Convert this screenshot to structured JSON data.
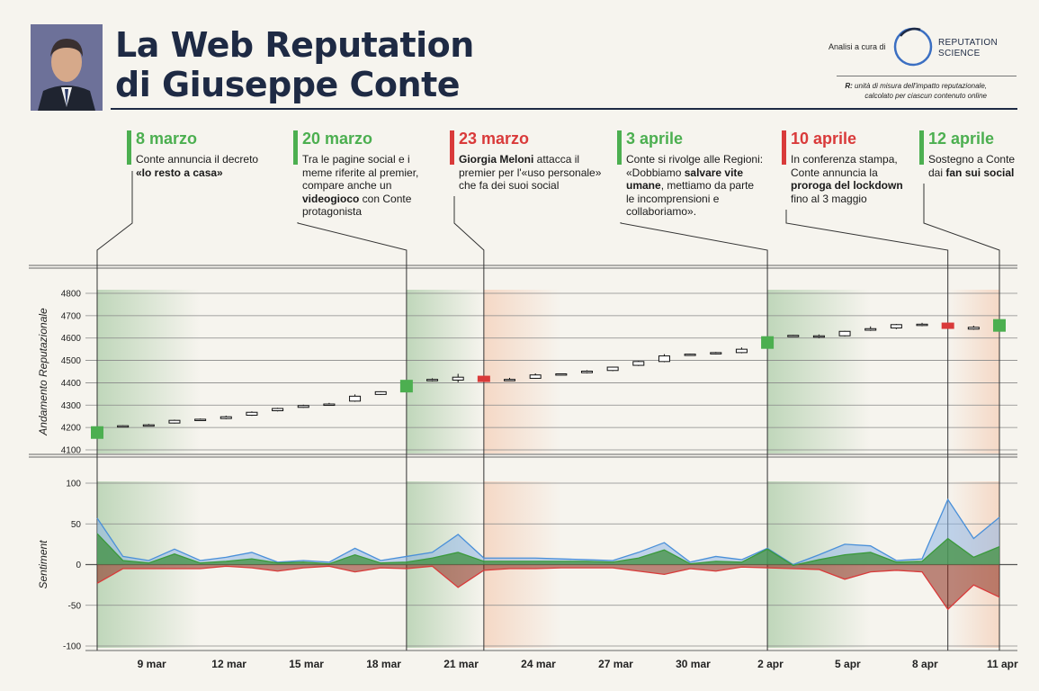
{
  "header": {
    "title_line1": "La Web Reputation",
    "title_line2": "di Giuseppe Conte",
    "credit": "Analisi a cura di",
    "brand_line1": "REPUTATION",
    "brand_line2": "SCIENCE",
    "unit_note_prefix": "R:",
    "unit_note_line1": "unità di misura dell'impatto reputazionale,",
    "unit_note_line2": "calcolato per ciascun contenuto online"
  },
  "colors": {
    "positive": "#4caf50",
    "negative": "#d93a3a",
    "navy": "#1e2a44",
    "sentiment_total": "#4a90d9"
  },
  "events": [
    {
      "date": "8 marzo",
      "tone": "positive",
      "desc": [
        "Conte annuncia il decreto",
        "<b>«Io resto a casa»</b>"
      ]
    },
    {
      "date": "20 marzo",
      "tone": "positive",
      "desc": [
        "Tra le pagine social e i",
        "meme riferite al premier,",
        "compare anche un",
        "<b>videogioco</b> con Conte",
        "protagonista"
      ]
    },
    {
      "date": "23 marzo",
      "tone": "negative",
      "desc": [
        "<b>Giorgia Meloni</b> attacca il",
        "premier per l'«uso personale»",
        "che fa dei suoi social"
      ]
    },
    {
      "date": "3 aprile",
      "tone": "positive",
      "desc": [
        "Conte si rivolge alle Regioni:",
        "«Dobbiamo <b>salvare vite</b>",
        "<b>umane</b>, mettiamo da parte",
        "le incomprensioni e",
        "collaboriamo»."
      ]
    },
    {
      "date": "10 aprile",
      "tone": "negative",
      "desc": [
        "In conferenza stampa,",
        "Conte annuncia la",
        "<b>proroga del lockdown</b>",
        "fino al 3 maggio"
      ]
    },
    {
      "date": "12 aprile",
      "tone": "positive",
      "desc": [
        "Sostegno a Conte",
        "dai <b>fan sui social</b>"
      ]
    }
  ],
  "chart_data": [
    {
      "type": "candlestick",
      "ylabel": "Andamento Reputazionale",
      "ylim": [
        4100,
        4800
      ],
      "yticks": [
        4100,
        4200,
        4300,
        4400,
        4500,
        4600,
        4700,
        4800
      ],
      "x": [
        "8 mar",
        "9 mar",
        "10 mar",
        "11 mar",
        "12 mar",
        "13 mar",
        "14 mar",
        "15 mar",
        "16 mar",
        "17 mar",
        "18 mar",
        "19 mar",
        "20 mar",
        "21 mar",
        "22 mar",
        "23 mar",
        "24 mar",
        "25 mar",
        "26 mar",
        "27 mar",
        "28 mar",
        "29 mar",
        "30 mar",
        "31 mar",
        "1 apr",
        "2 apr",
        "3 apr",
        "4 apr",
        "5 apr",
        "6 apr",
        "7 apr",
        "8 apr",
        "9 apr",
        "10 apr",
        "11 apr",
        "12 apr"
      ],
      "open": [
        4170,
        4203,
        4210,
        4220,
        4235,
        4240,
        4255,
        4275,
        4290,
        4300,
        4318,
        4348,
        4370,
        4410,
        4412,
        4415,
        4412,
        4420,
        4435,
        4445,
        4455,
        4478,
        4495,
        4525,
        4530,
        4535,
        4570,
        4610,
        4605,
        4610,
        4635,
        4645,
        4656,
        4650,
        4640,
        4648
      ],
      "close": [
        4185,
        4208,
        4212,
        4232,
        4237,
        4248,
        4268,
        4285,
        4298,
        4305,
        4340,
        4360,
        4400,
        4415,
        4425,
        4420,
        4415,
        4435,
        4440,
        4452,
        4470,
        4495,
        4520,
        4528,
        4535,
        4550,
        4590,
        4612,
        4610,
        4630,
        4642,
        4660,
        4662,
        4660,
        4648,
        4665
      ],
      "high": [
        4185,
        4210,
        4216,
        4235,
        4240,
        4253,
        4272,
        4288,
        4302,
        4310,
        4348,
        4362,
        4400,
        4420,
        4440,
        4420,
        4422,
        4442,
        4442,
        4456,
        4472,
        4498,
        4528,
        4530,
        4538,
        4558,
        4590,
        4614,
        4616,
        4632,
        4652,
        4663,
        4668,
        4665,
        4655,
        4665
      ],
      "low": [
        4170,
        4201,
        4208,
        4218,
        4234,
        4237,
        4252,
        4272,
        4288,
        4297,
        4315,
        4346,
        4370,
        4406,
        4402,
        4415,
        4408,
        4418,
        4432,
        4442,
        4452,
        4475,
        4492,
        4522,
        4527,
        4532,
        4570,
        4607,
        4600,
        4607,
        4632,
        4640,
        4653,
        4650,
        4637,
        4648
      ],
      "highlights": [
        {
          "index": 0,
          "tone": "positive"
        },
        {
          "index": 12,
          "tone": "positive"
        },
        {
          "index": 15,
          "tone": "negative"
        },
        {
          "index": 26,
          "tone": "positive"
        },
        {
          "index": 33,
          "tone": "negative"
        },
        {
          "index": 35,
          "tone": "positive"
        }
      ]
    },
    {
      "type": "area",
      "ylabel": "Sentiment",
      "ylim": [
        -100,
        100
      ],
      "yticks": [
        -100,
        -50,
        0,
        50,
        100
      ],
      "xticks": [
        "9 mar",
        "12 mar",
        "15 mar",
        "18 mar",
        "21 mar",
        "24 mar",
        "27 mar",
        "30 mar",
        "2 apr",
        "5 apr",
        "8 apr",
        "11 apr"
      ],
      "xtick_index": [
        1,
        4,
        7,
        10,
        13,
        16,
        19,
        22,
        25,
        28,
        31,
        34
      ],
      "series": [
        {
          "values": [
            57,
            10,
            5,
            19,
            5,
            9,
            15,
            3,
            5,
            3,
            20,
            5,
            10,
            15,
            37,
            8,
            8,
            8,
            7,
            6,
            5,
            15,
            27,
            3,
            10,
            6,
            20,
            0,
            12,
            25,
            23,
            5,
            7,
            80,
            32,
            58
          ]
        },
        {
          "values": [
            38,
            5,
            2,
            13,
            2,
            4,
            7,
            2,
            3,
            1,
            12,
            2,
            3,
            8,
            15,
            4,
            4,
            4,
            4,
            4,
            3,
            8,
            18,
            1,
            4,
            3,
            19,
            -1,
            6,
            12,
            15,
            3,
            4,
            32,
            9,
            22
          ]
        },
        {
          "values": [
            -23,
            -5,
            -5,
            -5,
            -5,
            -2,
            -4,
            -8,
            -4,
            -2,
            -9,
            -4,
            -5,
            -2,
            -28,
            -7,
            -5,
            -5,
            -4,
            -4,
            -4,
            -8,
            -12,
            -5,
            -8,
            -3,
            -4,
            -5,
            -6,
            -18,
            -9,
            -7,
            -9,
            -55,
            -25,
            -40
          ]
        }
      ]
    }
  ]
}
